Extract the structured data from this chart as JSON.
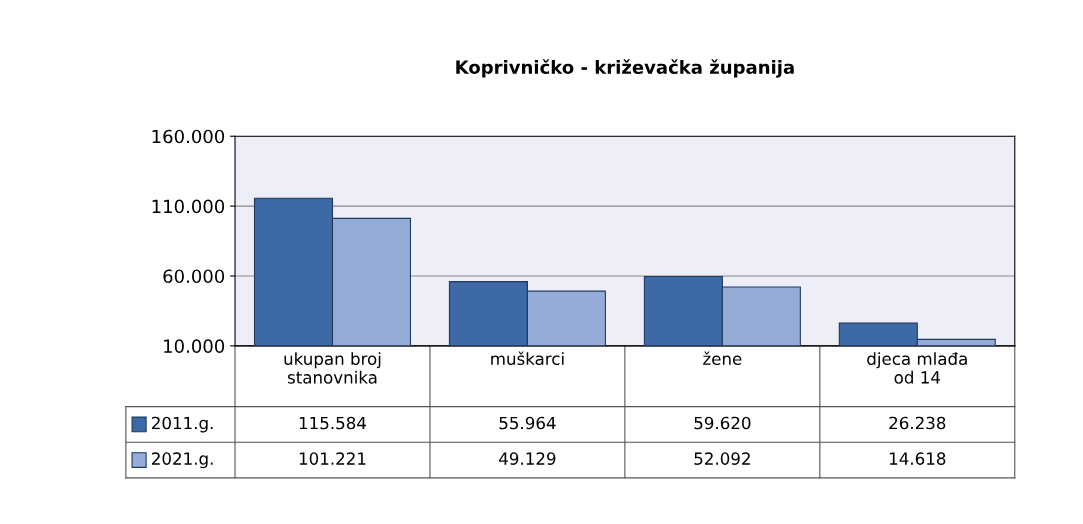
{
  "chart_data": {
    "type": "bar",
    "title": "Koprivničko - križevačka županija",
    "categories": [
      "ukupan broj\nstanovnika",
      "muškarci",
      "žene",
      "djeca mlađa\nod 14"
    ],
    "series": [
      {
        "name": "2011.g.",
        "color": "#3d6aa7",
        "values": [
          115584,
          55964,
          59620,
          26238
        ],
        "value_labels": [
          "115.584",
          "55.964",
          "59.620",
          "26.238"
        ]
      },
      {
        "name": "2021.g.",
        "color": "#95acd6",
        "values": [
          101221,
          49129,
          52092,
          14618
        ],
        "value_labels": [
          "101.221",
          "49.129",
          "52.092",
          "14.618"
        ]
      }
    ],
    "ylim": [
      10000,
      160000
    ],
    "yticks": [
      {
        "value": 10000,
        "label": "10.000"
      },
      {
        "value": 60000,
        "label": "60.000"
      },
      {
        "value": 110000,
        "label": "110.000"
      },
      {
        "value": 160000,
        "label": "160.000"
      }
    ],
    "grid": "y",
    "legend": "bottom left"
  }
}
